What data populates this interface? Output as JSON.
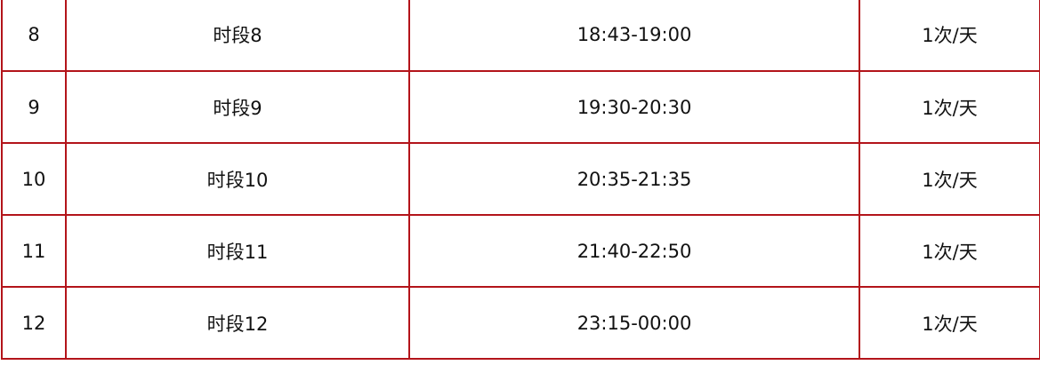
{
  "table": {
    "border_color": "#b3141a",
    "rows": [
      {
        "index": "8",
        "name": "时段8",
        "time": "18:43-19:00",
        "frequency": "1次/天"
      },
      {
        "index": "9",
        "name": "时段9",
        "time": "19:30-20:30",
        "frequency": "1次/天"
      },
      {
        "index": "10",
        "name": "时段10",
        "time": "20:35-21:35",
        "frequency": "1次/天"
      },
      {
        "index": "11",
        "name": "时段11",
        "time": "21:40-22:50",
        "frequency": "1次/天"
      },
      {
        "index": "12",
        "name": "时段12",
        "time": "23:15-00:00",
        "frequency": "1次/天"
      }
    ]
  }
}
